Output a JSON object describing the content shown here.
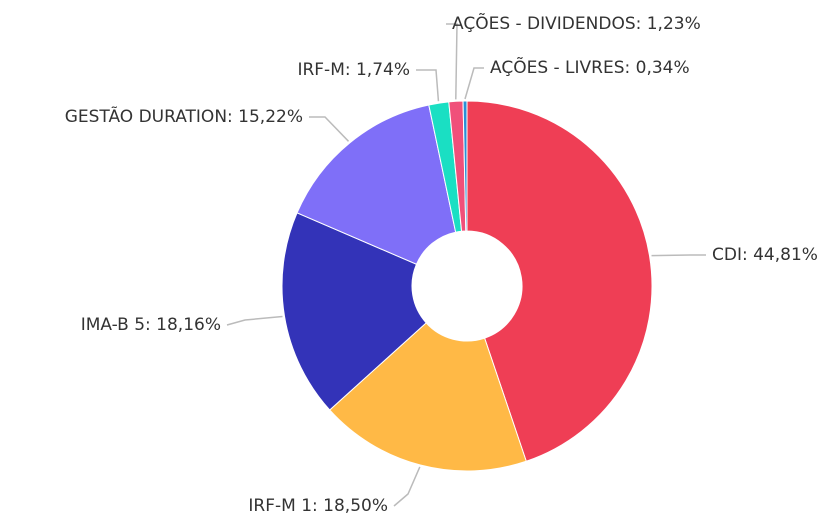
{
  "chart_data": {
    "type": "donut",
    "values": [
      44.81,
      18.5,
      18.16,
      15.22,
      1.74,
      1.23,
      0.34
    ],
    "value_labels": [
      "CDI: 44,81%",
      "IRF-M 1: 18,50%",
      "IMA-B 5: 18,16%",
      "GESTÃO DURATION: 15,22%",
      "IRF-M: 1,74%",
      "AÇÕES - DIVIDENDOS: 1,23%",
      "AÇÕES - LIVRES: 0,34%"
    ],
    "colors": [
      "#ef3e55",
      "#ffb946",
      "#3333b8",
      "#7f6ff8",
      "#1adfc3",
      "#f0507a",
      "#2a8fd6"
    ]
  }
}
